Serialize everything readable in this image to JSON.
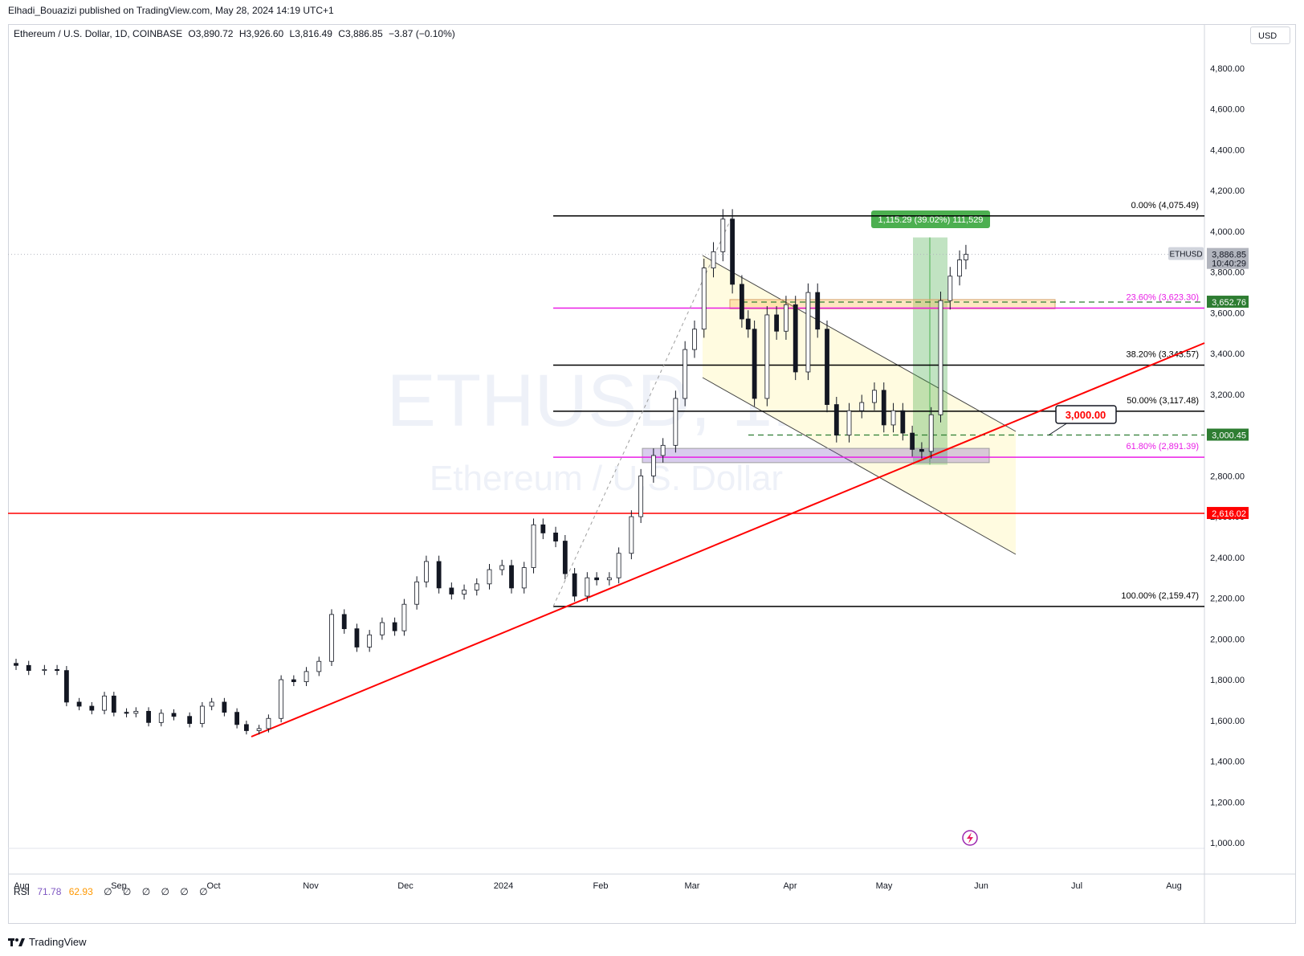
{
  "header": {
    "publisher": "Elhadi_Bouazizi published on TradingView.com, May 28, 2024 14:19 UTC+1"
  },
  "legend": {
    "symbol": "Ethereum / U.S. Dollar, 1D, COINBASE",
    "open": "O3,890.72",
    "high": "H3,926.60",
    "low": "L3,816.49",
    "close": "C3,886.85",
    "change": "−3.87 (−0.10%)"
  },
  "currency": "USD",
  "watermark": {
    "symbol": "ETHUSD, 1D",
    "name": "Ethereum / U.S. Dollar"
  },
  "rsi": {
    "label": "RSI",
    "value1": "71.78",
    "value2": "62.93",
    "icons": [
      "∅",
      "∅",
      "∅",
      "∅",
      "∅",
      "∅"
    ]
  },
  "footer": {
    "brand": "TradingView"
  },
  "colors": {
    "up": "#26a69a",
    "down": "#ef5350",
    "candle": "#131722",
    "fib_magenta": "#e91ee6",
    "trend_red": "#ff0000",
    "green_box": "#4caf50",
    "channel_fill": "#fffbe0"
  },
  "chart_data": {
    "type": "candlestick",
    "title": "",
    "ylim": [
      1000,
      4900
    ],
    "price_ticks": [
      "4,800.00",
      "4,600.00",
      "4,400.00",
      "4,200.00",
      "4,000.00",
      "3,800.00",
      "3,600.00",
      "3,400.00",
      "3,200.00",
      "3,000.00",
      "2,800.00",
      "2,600.00",
      "2,400.00",
      "2,200.00",
      "2,000.00",
      "1,800.00",
      "1,600.00",
      "1,400.00",
      "1,200.00",
      "1,000.00"
    ],
    "price_tick_values": [
      4800,
      4600,
      4400,
      4200,
      4000,
      3800,
      3600,
      3400,
      3200,
      3000,
      2800,
      2600,
      2400,
      2200,
      2000,
      1800,
      1600,
      1400,
      1200,
      1000
    ],
    "time_ticks": [
      "Aug",
      "Sep",
      "Oct",
      "Nov",
      "Dec",
      "2024",
      "Feb",
      "Mar",
      "Apr",
      "May",
      "Jun",
      "Jul",
      "Aug"
    ],
    "price_labels": [
      {
        "value": "3,886.85",
        "sub": "10:40:29",
        "color": "#b2b5be",
        "y": 3886.85
      },
      {
        "value": "3,652.76",
        "color": "#2e7d32",
        "y": 3652.76
      },
      {
        "value": "3,000.45",
        "color": "#2e7d32",
        "y": 3000.45
      },
      {
        "value": "2,616.02",
        "color": "#ff0000",
        "y": 2616.02
      }
    ],
    "ticker_tag": "ETHUSD",
    "fib_levels": [
      {
        "label": "0.00% (4,075.49)",
        "price": 4075.49,
        "color": "#000000"
      },
      {
        "label": "23.60% (3,623.30)",
        "price": 3623.3,
        "color": "#e91ee6"
      },
      {
        "label": "38.20% (3,343.57)",
        "price": 3343.57,
        "color": "#000000"
      },
      {
        "label": "50.00% (3,117.48)",
        "price": 3117.48,
        "color": "#000000"
      },
      {
        "label": "61.80% (2,891.39)",
        "price": 2891.39,
        "color": "#e91ee6"
      },
      {
        "label": "100.00% (2,159.47)",
        "price": 2159.47,
        "color": "#000000"
      }
    ],
    "horizontal_support": {
      "price": 2616.02
    },
    "target_callout": {
      "label": "3,000.00",
      "price": 3000.0
    },
    "measure_box": {
      "label": "1,115.29 (39.02%) 111,529",
      "from": 2855,
      "to": 3970
    },
    "series": [
      {
        "name": "ETHUSD",
        "points": [
          [
            "2023-08-01",
            1870
          ],
          [
            "2023-08-05",
            1845
          ],
          [
            "2023-08-10",
            1850
          ],
          [
            "2023-08-14",
            1845
          ],
          [
            "2023-08-17",
            1690
          ],
          [
            "2023-08-21",
            1670
          ],
          [
            "2023-08-25",
            1650
          ],
          [
            "2023-08-29",
            1720
          ],
          [
            "2023-09-01",
            1640
          ],
          [
            "2023-09-05",
            1635
          ],
          [
            "2023-09-08",
            1645
          ],
          [
            "2023-09-12",
            1590
          ],
          [
            "2023-09-16",
            1635
          ],
          [
            "2023-09-20",
            1620
          ],
          [
            "2023-09-25",
            1585
          ],
          [
            "2023-09-29",
            1670
          ],
          [
            "2023-10-02",
            1690
          ],
          [
            "2023-10-06",
            1640
          ],
          [
            "2023-10-10",
            1580
          ],
          [
            "2023-10-13",
            1550
          ],
          [
            "2023-10-17",
            1560
          ],
          [
            "2023-10-20",
            1610
          ],
          [
            "2023-10-24",
            1800
          ],
          [
            "2023-10-28",
            1790
          ],
          [
            "2023-11-01",
            1840
          ],
          [
            "2023-11-05",
            1890
          ],
          [
            "2023-11-09",
            2120
          ],
          [
            "2023-11-13",
            2050
          ],
          [
            "2023-11-17",
            1960
          ],
          [
            "2023-11-21",
            2020
          ],
          [
            "2023-11-25",
            2080
          ],
          [
            "2023-11-29",
            2040
          ],
          [
            "2023-12-02",
            2170
          ],
          [
            "2023-12-06",
            2280
          ],
          [
            "2023-12-09",
            2380
          ],
          [
            "2023-12-13",
            2250
          ],
          [
            "2023-12-17",
            2220
          ],
          [
            "2023-12-21",
            2240
          ],
          [
            "2023-12-25",
            2270
          ],
          [
            "2023-12-29",
            2340
          ],
          [
            "2024-01-02",
            2360
          ],
          [
            "2024-01-05",
            2250
          ],
          [
            "2024-01-09",
            2350
          ],
          [
            "2024-01-12",
            2560
          ],
          [
            "2024-01-15",
            2520
          ],
          [
            "2024-01-19",
            2480
          ],
          [
            "2024-01-22",
            2320
          ],
          [
            "2024-01-25",
            2210
          ],
          [
            "2024-01-29",
            2300
          ],
          [
            "2024-02-01",
            2290
          ],
          [
            "2024-02-05",
            2300
          ],
          [
            "2024-02-08",
            2420
          ],
          [
            "2024-02-12",
            2600
          ],
          [
            "2024-02-15",
            2800
          ],
          [
            "2024-02-19",
            2900
          ],
          [
            "2024-02-22",
            2950
          ],
          [
            "2024-02-26",
            3180
          ],
          [
            "2024-02-29",
            3420
          ],
          [
            "2024-03-03",
            3520
          ],
          [
            "2024-03-06",
            3820
          ],
          [
            "2024-03-09",
            3900
          ],
          [
            "2024-03-12",
            4060
          ],
          [
            "2024-03-15",
            3740
          ],
          [
            "2024-03-18",
            3570
          ],
          [
            "2024-03-20",
            3520
          ],
          [
            "2024-03-22",
            3180
          ],
          [
            "2024-03-26",
            3590
          ],
          [
            "2024-03-29",
            3510
          ],
          [
            "2024-04-01",
            3640
          ],
          [
            "2024-04-04",
            3310
          ],
          [
            "2024-04-08",
            3700
          ],
          [
            "2024-04-11",
            3520
          ],
          [
            "2024-04-14",
            3150
          ],
          [
            "2024-04-17",
            3000
          ],
          [
            "2024-04-21",
            3120
          ],
          [
            "2024-04-25",
            3160
          ],
          [
            "2024-04-29",
            3220
          ],
          [
            "2024-05-02",
            3050
          ],
          [
            "2024-05-05",
            3120
          ],
          [
            "2024-05-08",
            3010
          ],
          [
            "2024-05-11",
            2930
          ],
          [
            "2024-05-14",
            2920
          ],
          [
            "2024-05-17",
            3100
          ],
          [
            "2024-05-20",
            3660
          ],
          [
            "2024-05-23",
            3780
          ],
          [
            "2024-05-26",
            3860
          ],
          [
            "2024-05-28",
            3886.85
          ]
        ]
      }
    ]
  }
}
